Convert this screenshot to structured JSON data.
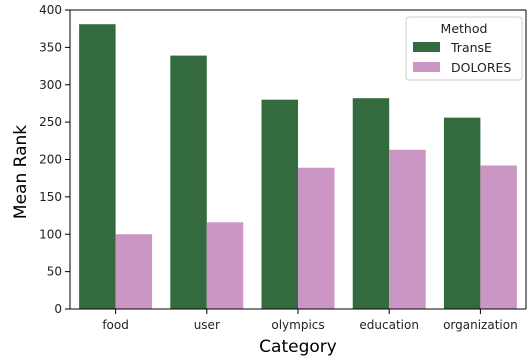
{
  "chart_data": {
    "type": "bar",
    "categories": [
      "food",
      "user",
      "olympics",
      "education",
      "organization"
    ],
    "series": [
      {
        "name": "TransE",
        "values": [
          381,
          339,
          280,
          282,
          256
        ],
        "color": "#336b3e"
      },
      {
        "name": "DOLORES",
        "values": [
          100,
          116,
          189,
          213,
          192
        ],
        "color": "#cc96c4"
      }
    ],
    "xlabel": "Category",
    "ylabel": "Mean Rank",
    "ylim": [
      0,
      400
    ],
    "yticks": [
      0,
      50,
      100,
      150,
      200,
      250,
      300,
      350,
      400
    ],
    "ytick_labels": [
      "0",
      "50",
      "100",
      "150",
      "200",
      "250",
      "300",
      "350",
      "400"
    ],
    "legend": {
      "title": "Method",
      "placement": "top-right"
    },
    "grid": false
  }
}
